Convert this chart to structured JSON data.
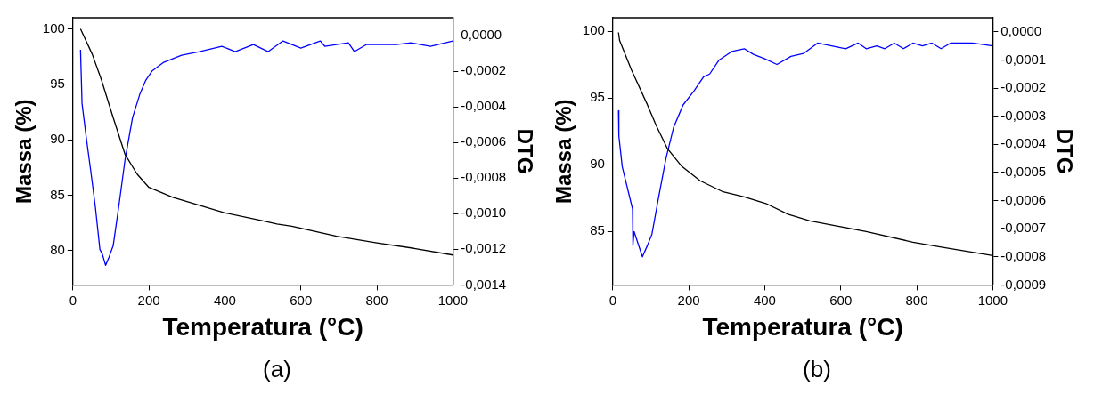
{
  "chart_data": [
    {
      "type": "line",
      "xlabel": "Temperatura (°C)",
      "ylabel": "Massa (%)",
      "y2label": "DTG",
      "annotations": [
        "(a)"
      ],
      "xlim": [
        0,
        1000
      ],
      "xticks": [
        0,
        200,
        400,
        600,
        800,
        1000
      ],
      "ylim": [
        76.9,
        101
      ],
      "yticks": [
        80,
        85,
        90,
        95,
        100
      ],
      "y2lim": [
        -0.0014,
        0.0001
      ],
      "y2ticks": [
        {
          "value": 0,
          "label": "0,0000"
        },
        {
          "value": -0.0002,
          "label": "-0,0002"
        },
        {
          "value": -0.0004,
          "label": "-0,0004"
        },
        {
          "value": -0.0006,
          "label": "-0,0006"
        },
        {
          "value": -0.0008,
          "label": "-0,0008"
        },
        {
          "value": -0.001,
          "label": "-0,0010"
        },
        {
          "value": -0.0012,
          "label": "-0,0012"
        },
        {
          "value": -0.0014,
          "label": "-0,0014"
        }
      ],
      "grid": false,
      "legend": false,
      "marker": "none",
      "line_style": "solid",
      "series": [
        {
          "color": "#000000",
          "x": [
            20,
            51,
            75,
            106,
            137,
            169,
            200,
            263,
            302,
            400,
            498,
            537,
            576,
            694,
            800,
            898,
            1000
          ],
          "values": [
            100.0,
            97.7,
            95.4,
            92.0,
            88.7,
            86.9,
            85.7,
            84.8,
            84.4,
            83.4,
            82.7,
            82.4,
            82.2,
            81.3,
            80.7,
            80.2,
            79.6
          ]
        },
        {
          "color": "#0000ff",
          "axis": "y2",
          "x": [
            20,
            24,
            35,
            47,
            59,
            71,
            78,
            86,
            94,
            106,
            122,
            137,
            157,
            176,
            192,
            208,
            239,
            286,
            333,
            392,
            427,
            475,
            514,
            553,
            600,
            651,
            663,
            725,
            741,
            773,
            851,
            890,
            941,
            1000
          ],
          "values": [
            -8e-05,
            -0.00038,
            -0.00057,
            -0.00076,
            -0.00096,
            -0.0012,
            -0.00123,
            -0.00129,
            -0.00125,
            -0.00118,
            -0.00094,
            -0.0007,
            -0.00046,
            -0.00033,
            -0.00025,
            -0.0002,
            -0.00015,
            -0.00011,
            -9e-05,
            -6e-05,
            -9e-05,
            -5e-05,
            -9e-05,
            -3e-05,
            -7e-05,
            -3e-05,
            -6e-05,
            -4e-05,
            -9e-05,
            -5e-05,
            -5e-05,
            -4e-05,
            -6e-05,
            -3e-05
          ]
        }
      ]
    },
    {
      "type": "line",
      "xlabel": "Temperatura (°C)",
      "ylabel": "Massa (%)",
      "y2label": "DTG",
      "annotations": [
        "(b)"
      ],
      "xlim": [
        0,
        1000
      ],
      "xticks": [
        0,
        200,
        400,
        600,
        800,
        1000
      ],
      "ylim": [
        81,
        101
      ],
      "yticks": [
        85,
        90,
        95,
        100
      ],
      "y2lim": [
        -0.0009,
        5e-05
      ],
      "y2ticks": [
        {
          "value": 0,
          "label": "0,0000"
        },
        {
          "value": -0.0001,
          "label": "-0,0001"
        },
        {
          "value": -0.0002,
          "label": "-0,0002"
        },
        {
          "value": -0.0003,
          "label": "-0,0003"
        },
        {
          "value": -0.0004,
          "label": "-0,0004"
        },
        {
          "value": -0.0005,
          "label": "-0,0005"
        },
        {
          "value": -0.0006,
          "label": "-0,0006"
        },
        {
          "value": -0.0007,
          "label": "-0,0007"
        },
        {
          "value": -0.0008,
          "label": "-0,0008"
        },
        {
          "value": -0.0009,
          "label": "-0,0009"
        }
      ],
      "grid": false,
      "legend": false,
      "marker": "none",
      "line_style": "solid",
      "series": [
        {
          "color": "#000000",
          "x": [
            15,
            18,
            49,
            91,
            115,
            144,
            181,
            230,
            288,
            346,
            403,
            461,
            519,
            593,
            667,
            790,
            872,
            1000
          ],
          "values": [
            99.9,
            99.3,
            97.1,
            94.5,
            92.9,
            91.2,
            89.9,
            88.8,
            88.0,
            87.6,
            87.1,
            86.3,
            85.8,
            85.4,
            85.0,
            84.2,
            83.8,
            83.2
          ]
        },
        {
          "color": "#0000ff",
          "axis": "y2",
          "x": [
            15,
            16,
            25,
            52,
            53,
            56,
            78,
            91,
            103,
            119,
            140,
            160,
            185,
            214,
            239,
            255,
            280,
            313,
            346,
            370,
            399,
            432,
            469,
            502,
            539,
            576,
            613,
            646,
            667,
            695,
            716,
            741,
            765,
            790,
            815,
            840,
            864,
            889,
            946,
            1000
          ],
          "values": [
            -0.00028,
            -0.00037,
            -0.00048,
            -0.00063,
            -0.00076,
            -0.00071,
            -0.0008,
            -0.00076,
            -0.00072,
            -0.0006,
            -0.00045,
            -0.00034,
            -0.00026,
            -0.00021,
            -0.00016,
            -0.00015,
            -0.0001,
            -7e-05,
            -6e-05,
            -8e-05,
            -9.5e-05,
            -0.000116,
            -8.7e-05,
            -7.7e-05,
            -4e-05,
            -5e-05,
            -6e-05,
            -4e-05,
            -6e-05,
            -5e-05,
            -6e-05,
            -4e-05,
            -6e-05,
            -4e-05,
            -5e-05,
            -4e-05,
            -6e-05,
            -4e-05,
            -4e-05,
            -5e-05
          ]
        }
      ]
    }
  ]
}
